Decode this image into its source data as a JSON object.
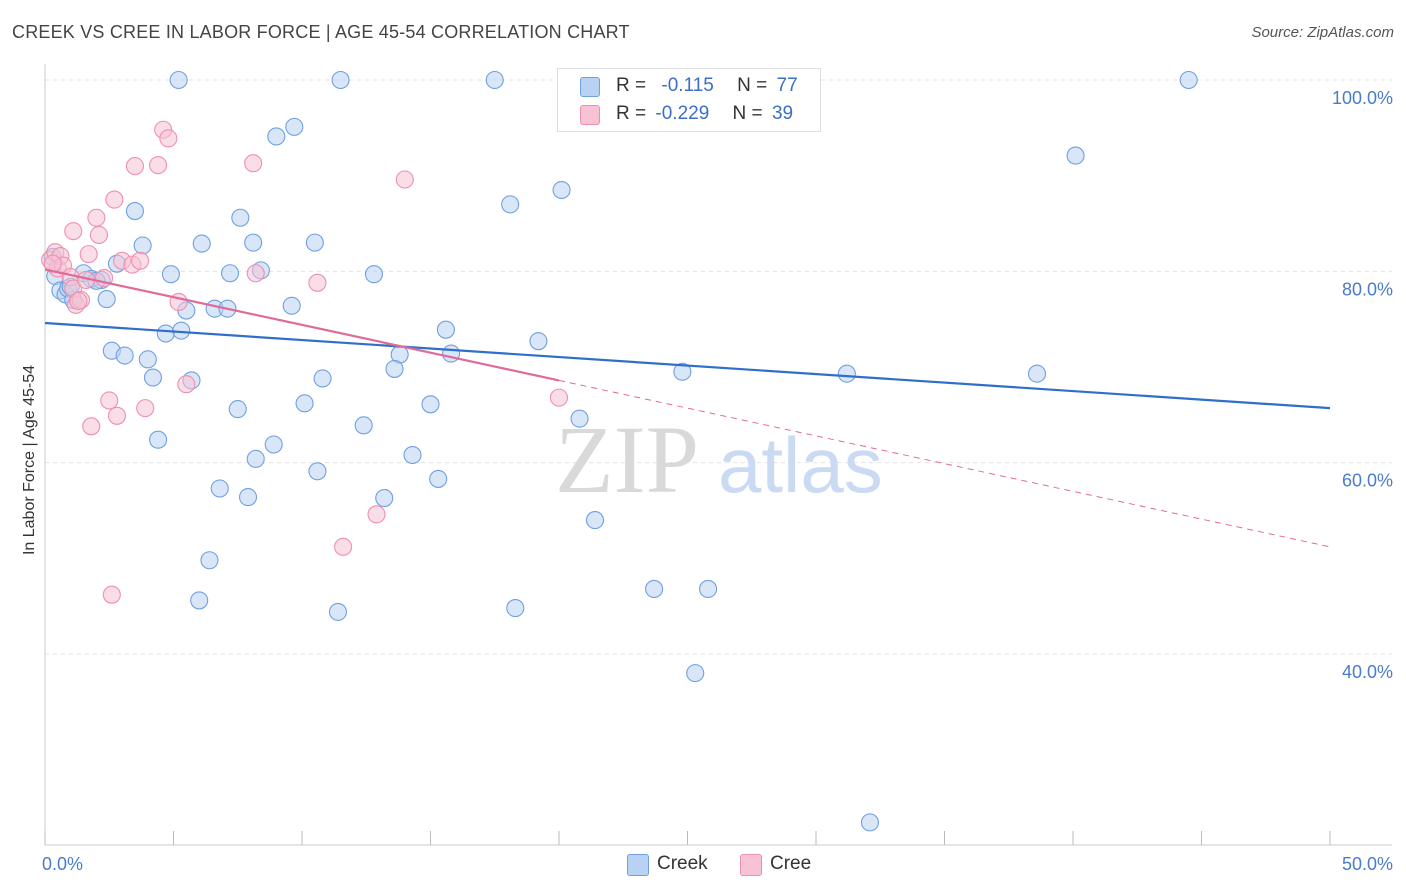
{
  "title": "CREEK VS CREE IN LABOR FORCE | AGE 45-54 CORRELATION CHART",
  "source": "Source: ZipAtlas.com",
  "watermark": {
    "zip": "ZIP",
    "atlas": "atlas"
  },
  "colors": {
    "creek": "#6fa0e0",
    "creek_fill": "#b9d2f3",
    "cree": "#ef8fb0",
    "cree_fill": "#f6c2d4",
    "creek_line": "#2f6fcc",
    "cree_line": "#e06a98",
    "tick_label": "#4a7cc9"
  },
  "legend": {
    "creek": {
      "r_label": "R =",
      "r_value": "-0.115",
      "n_label": "N =",
      "n_value": "77"
    },
    "cree": {
      "r_label": "R =",
      "r_value": "-0.229",
      "n_label": "N =",
      "n_value": "39"
    }
  },
  "bottom_legend": {
    "creek": "Creek",
    "cree": "Cree"
  },
  "chart_data": {
    "type": "scatter",
    "title": "CREEK VS CREE IN LABOR FORCE | AGE 45-54 CORRELATION CHART",
    "xlabel": "",
    "ylabel": "In Labor Force | Age 45-54",
    "xlim": [
      0,
      50
    ],
    "ylim": [
      22,
      101
    ],
    "x_tick_labels": [
      {
        "value": 0,
        "label": "0.0%"
      },
      {
        "value": 50,
        "label": "50.0%"
      }
    ],
    "y_ticks": [
      {
        "value": 40,
        "label": "40.0%"
      },
      {
        "value": 60,
        "label": "60.0%"
      },
      {
        "value": 80,
        "label": "80.0%"
      },
      {
        "value": 100,
        "label": "100.0%"
      }
    ],
    "grid": true,
    "legend_position": "top-center",
    "series": [
      {
        "name": "Creek",
        "r": -0.115,
        "n": 77,
        "trend": {
          "x": [
            0,
            50
          ],
          "y": [
            74.6,
            65.7
          ],
          "dashed_after": null
        },
        "points": [
          [
            0.3,
            81.5
          ],
          [
            0.4,
            79.5
          ],
          [
            0.6,
            78.0
          ],
          [
            0.8,
            77.6
          ],
          [
            0.9,
            78.2
          ],
          [
            1.1,
            77.0
          ],
          [
            1.5,
            79.8
          ],
          [
            1.8,
            79.2
          ],
          [
            2.2,
            79.1
          ],
          [
            2.4,
            77.1
          ],
          [
            2.8,
            80.8
          ],
          [
            2.6,
            71.7
          ],
          [
            3.1,
            71.2
          ],
          [
            3.5,
            86.3
          ],
          [
            3.8,
            82.7
          ],
          [
            4.0,
            70.8
          ],
          [
            4.2,
            68.9
          ],
          [
            4.4,
            62.4
          ],
          [
            4.7,
            73.5
          ],
          [
            4.9,
            79.7
          ],
          [
            5.2,
            100.0
          ],
          [
            5.3,
            73.8
          ],
          [
            5.5,
            75.9
          ],
          [
            5.7,
            68.6
          ],
          [
            6.0,
            45.6
          ],
          [
            6.1,
            82.9
          ],
          [
            6.4,
            49.8
          ],
          [
            6.6,
            76.1
          ],
          [
            6.8,
            57.3
          ],
          [
            7.1,
            76.1
          ],
          [
            7.2,
            79.8
          ],
          [
            7.5,
            65.6
          ],
          [
            7.6,
            85.6
          ],
          [
            7.9,
            56.4
          ],
          [
            8.1,
            83.0
          ],
          [
            8.2,
            60.4
          ],
          [
            8.4,
            80.1
          ],
          [
            8.9,
            61.9
          ],
          [
            9.0,
            94.1
          ],
          [
            9.6,
            76.4
          ],
          [
            9.7,
            95.1
          ],
          [
            10.1,
            66.2
          ],
          [
            10.5,
            83.0
          ],
          [
            10.6,
            59.1
          ],
          [
            10.8,
            68.8
          ],
          [
            11.4,
            44.4
          ],
          [
            11.5,
            100.0
          ],
          [
            12.4,
            63.9
          ],
          [
            12.8,
            79.7
          ],
          [
            13.2,
            56.3
          ],
          [
            13.8,
            71.3
          ],
          [
            13.6,
            69.8
          ],
          [
            14.3,
            60.8
          ],
          [
            15.0,
            66.1
          ],
          [
            15.3,
            58.3
          ],
          [
            15.6,
            73.9
          ],
          [
            15.8,
            71.4
          ],
          [
            17.5,
            100.0
          ],
          [
            18.1,
            87.0
          ],
          [
            18.3,
            44.8
          ],
          [
            19.2,
            72.7
          ],
          [
            20.1,
            88.5
          ],
          [
            20.8,
            64.6
          ],
          [
            21.4,
            54.0
          ],
          [
            23.5,
            96.8
          ],
          [
            23.7,
            46.8
          ],
          [
            24.1,
            96.0
          ],
          [
            24.8,
            69.5
          ],
          [
            25.3,
            38.0
          ],
          [
            25.8,
            46.8
          ],
          [
            31.2,
            69.3
          ],
          [
            32.1,
            22.4
          ],
          [
            38.6,
            69.3
          ],
          [
            40.1,
            92.1
          ],
          [
            44.5,
            100.0
          ],
          [
            1.0,
            78.4
          ],
          [
            2.0,
            79.0
          ]
        ]
      },
      {
        "name": "Cree",
        "r": -0.229,
        "n": 39,
        "trend": {
          "x": [
            0,
            20
          ],
          "y": [
            80.2,
            68.6
          ],
          "dashed_x": [
            20,
            50
          ],
          "dashed_y": [
            68.6,
            51.2
          ]
        },
        "points": [
          [
            0.2,
            81.2
          ],
          [
            0.4,
            82.0
          ],
          [
            0.5,
            80.3
          ],
          [
            0.6,
            81.6
          ],
          [
            0.7,
            80.6
          ],
          [
            1.0,
            79.4
          ],
          [
            1.1,
            78.2
          ],
          [
            1.1,
            84.2
          ],
          [
            1.2,
            76.5
          ],
          [
            1.4,
            77.0
          ],
          [
            1.6,
            79.1
          ],
          [
            1.7,
            81.8
          ],
          [
            1.8,
            63.8
          ],
          [
            2.0,
            85.6
          ],
          [
            2.1,
            83.8
          ],
          [
            2.3,
            79.3
          ],
          [
            2.5,
            66.5
          ],
          [
            2.6,
            46.2
          ],
          [
            2.7,
            87.5
          ],
          [
            2.8,
            64.9
          ],
          [
            3.0,
            81.1
          ],
          [
            3.4,
            80.7
          ],
          [
            3.5,
            91.0
          ],
          [
            3.7,
            81.1
          ],
          [
            3.9,
            65.7
          ],
          [
            4.4,
            91.1
          ],
          [
            4.6,
            94.8
          ],
          [
            4.8,
            93.9
          ],
          [
            5.2,
            76.8
          ],
          [
            5.5,
            68.2
          ],
          [
            8.1,
            91.3
          ],
          [
            8.2,
            79.8
          ],
          [
            10.6,
            78.8
          ],
          [
            11.6,
            51.2
          ],
          [
            12.9,
            54.6
          ],
          [
            14.0,
            89.6
          ],
          [
            20.0,
            66.8
          ],
          [
            0.3,
            80.8
          ],
          [
            1.3,
            76.9
          ]
        ]
      }
    ]
  }
}
